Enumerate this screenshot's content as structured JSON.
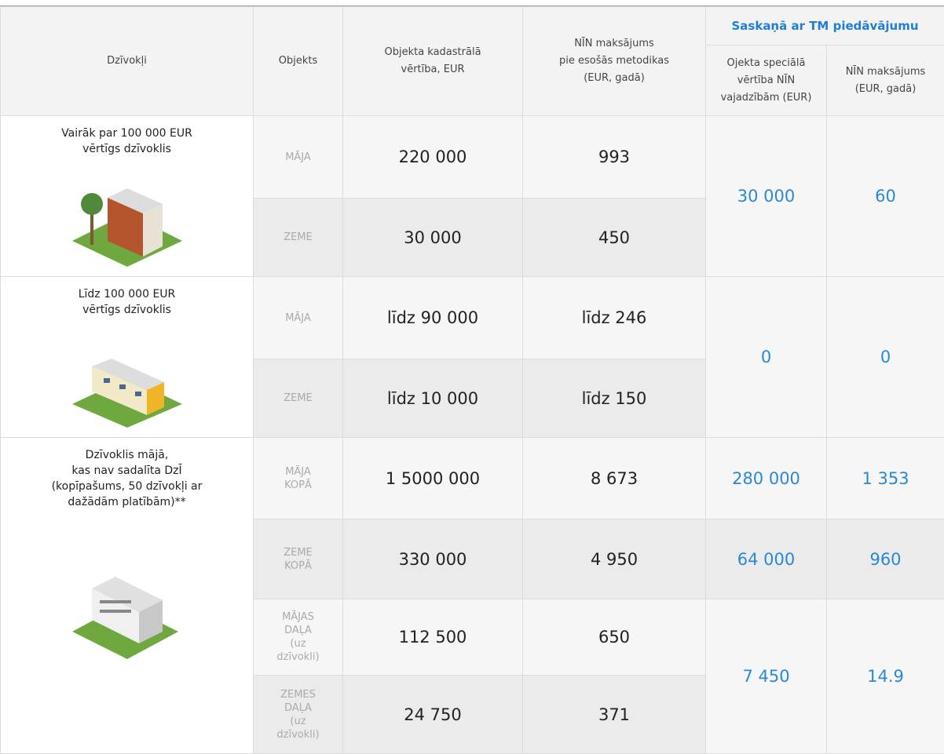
{
  "header": {
    "col1": "Dzīvokļi",
    "col2": "Objekts",
    "col3": "Objekta kadastrālā\nvērtība, EUR",
    "col4": "NĪN maksājums\npie esošās metodikas\n(EUR, gadā)",
    "group": "Saskaņā ar TM piedāvājumu",
    "col5": "Ojekta speciālā\nvērtība NĪN\nvajadzībām (EUR)",
    "col6": "NĪN maksājums\n(EUR, gadā)"
  },
  "groups": [
    {
      "label": "Vairāk par 100 000 EUR\nvērtīgs dzīvoklis",
      "rows": [
        {
          "object": "MĀJA",
          "cadastral": "220 000",
          "payment": "993"
        },
        {
          "object": "ZEME",
          "cadastral": "30 000",
          "payment": "450"
        }
      ],
      "proposal": [
        {
          "value": "30 000",
          "payment": "60"
        }
      ]
    },
    {
      "label": "Līdz 100 000 EUR\nvērtīgs dzīvoklis",
      "rows": [
        {
          "object": "MĀJA",
          "cadastral": "līdz 90 000",
          "payment": "līdz 246"
        },
        {
          "object": "ZEME",
          "cadastral": "līdz 10 000",
          "payment": "līdz 150"
        }
      ],
      "proposal": [
        {
          "value": "0",
          "payment": "0"
        }
      ]
    },
    {
      "label": "Dzīvoklis mājā,\nkas nav sadalīta DzĪ\n(kopīpašums, 50 dzīvokļi ar\ndažādām platībām)**",
      "rows": [
        {
          "object": "MĀJA\nKOPĀ",
          "cadastral": "1 5000 000",
          "payment": "8 673"
        },
        {
          "object": "ZEME\nKOPĀ",
          "cadastral": "330 000",
          "payment": "4 950"
        },
        {
          "object": "MĀJAS\nDAĻA\n(uz\ndzīvokli)",
          "cadastral": "112 500",
          "payment": "650"
        },
        {
          "object": "ZEMES\nDAĻA\n(uz\ndzīvokli)",
          "cadastral": "24 750",
          "payment": "371"
        }
      ],
      "proposal": [
        {
          "value": "280 000",
          "payment": "1 353"
        },
        {
          "value": "64 000",
          "payment": "960"
        },
        {
          "value": "7 450",
          "payment": "14.9"
        }
      ]
    }
  ]
}
